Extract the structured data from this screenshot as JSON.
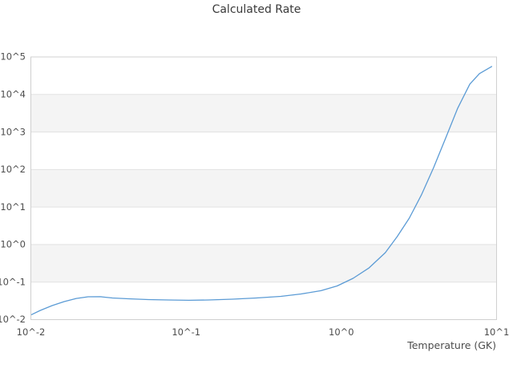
{
  "title": "Calculated Rate",
  "colors": {
    "line": "#5b9bd5",
    "band": "#f4f4f4",
    "gridline": "#e2e2e2",
    "border": "#d0d0d0",
    "title_text": "#3a3a3a",
    "tick_text": "#4d4d4d"
  },
  "chart_data": {
    "type": "line",
    "title": "Calculated Rate",
    "xlabel": "Temperature (GK)",
    "ylabel": "",
    "x_scale": "log",
    "y_scale": "log",
    "xlim": [
      0.01,
      10
    ],
    "ylim": [
      0.01,
      100000
    ],
    "grid": "horizontal-decade-lines-with-alternating-bands",
    "legend": "none",
    "xtick_labels": [
      "10^-2",
      "10^-1",
      "10^0",
      "10^1"
    ],
    "ytick_labels": [
      "10^5",
      "10^4",
      "10^3",
      "10^2",
      "10^1",
      "10^0",
      "10^-1",
      "10^-2"
    ],
    "series": [
      {
        "name": "calculated_rate",
        "color": "#5b9bd5",
        "x": [
          0.01,
          0.0115,
          0.0137,
          0.0164,
          0.0196,
          0.0234,
          0.028,
          0.0335,
          0.0424,
          0.057,
          0.077,
          0.104,
          0.139,
          0.199,
          0.284,
          0.408,
          0.55,
          0.74,
          0.94,
          1.19,
          1.51,
          1.92,
          2.29,
          2.74,
          3.28,
          3.93,
          4.7,
          5.62,
          6.72,
          7.75,
          9.3
        ],
        "y": [
          0.0133,
          0.0176,
          0.0237,
          0.0302,
          0.0367,
          0.0407,
          0.0408,
          0.0378,
          0.0359,
          0.0342,
          0.0334,
          0.0327,
          0.0334,
          0.035,
          0.0378,
          0.0417,
          0.0482,
          0.059,
          0.079,
          0.126,
          0.24,
          0.61,
          1.63,
          5.05,
          21,
          112,
          690,
          4300,
          18900,
          35900,
          55600
        ]
      }
    ]
  }
}
